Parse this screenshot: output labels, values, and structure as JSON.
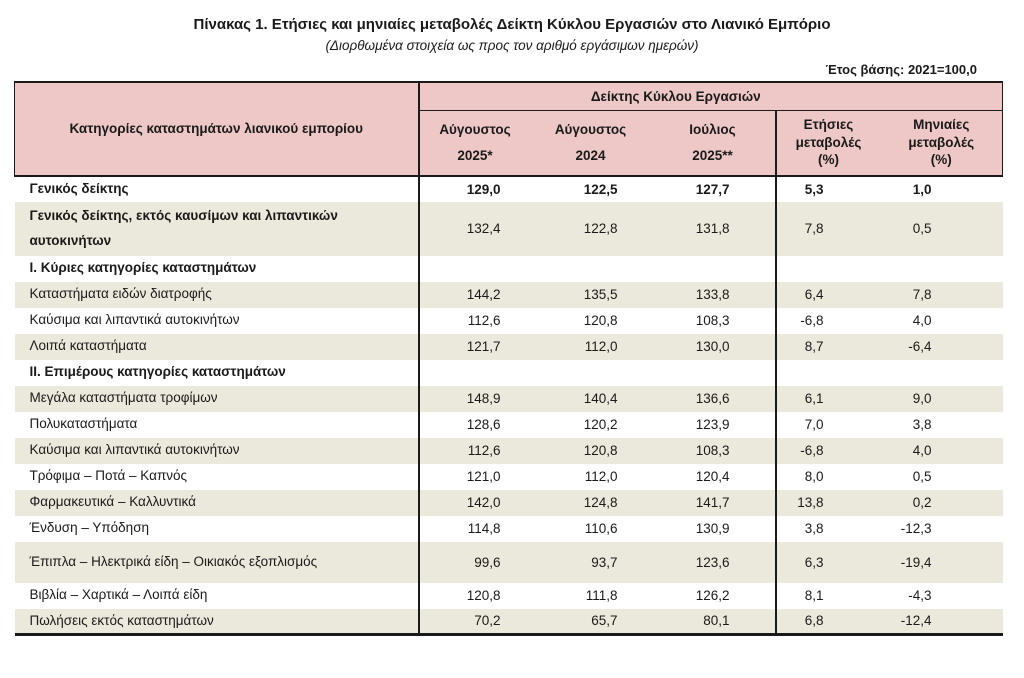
{
  "header": {
    "title": "Πίνακας 1. Ετήσιες και μηνιαίες μεταβολές Δείκτη Κύκλου Εργασιών στο Λιανικό Εμπόριο",
    "subtitle": "(Διορθωμένα στοιχεία ως προς τον αριθμό εργάσιμων ημερών)",
    "base_year_note": "Έτος βάσης: 2021=100,0"
  },
  "table": {
    "group_header": "Δείκτης Κύκλου Εργασιών",
    "category_header": "Κατηγορίες καταστημάτων λιανικού εμπορίου",
    "columns": [
      {
        "key": "august-2025",
        "lines": [
          "Αύγουστος",
          "2025*"
        ]
      },
      {
        "key": "august-2024",
        "lines": [
          "Αύγουστος",
          "2024"
        ]
      },
      {
        "key": "july-2025",
        "lines": [
          "Ιούλιος",
          "2025**"
        ]
      },
      {
        "key": "annual-change-pct",
        "lines": [
          "Ετήσιες",
          "μεταβολές",
          "(%)"
        ]
      },
      {
        "key": "monthly-change-pct",
        "lines": [
          "Μηνιαίες",
          "μεταβολές",
          "(%)"
        ]
      }
    ],
    "rows": [
      {
        "label": "Γενικός δείκτης",
        "values": [
          "129,0",
          "122,5",
          "127,7",
          "5,3",
          "1,0"
        ],
        "emphasis": "all-bold"
      },
      {
        "label": "Γενικός δείκτης, εκτός καυσίμων και λιπαντικών αυτοκινήτων",
        "values": [
          "132,4",
          "122,8",
          "131,8",
          "7,8",
          "0,5"
        ],
        "emphasis": "label-bold",
        "dbl": true
      },
      {
        "label": "Ι. Κύριες κατηγορίες καταστημάτων",
        "values": [
          "",
          "",
          "",
          "",
          ""
        ],
        "emphasis": "section"
      },
      {
        "label": "Καταστήματα ειδών διατροφής",
        "values": [
          "144,2",
          "135,5",
          "133,8",
          "6,4",
          "7,8"
        ],
        "emphasis": "normal"
      },
      {
        "label": "Καύσιμα και λιπαντικά αυτοκινήτων",
        "values": [
          "112,6",
          "120,8",
          "108,3",
          "-6,8",
          "4,0"
        ],
        "emphasis": "normal"
      },
      {
        "label": "Λοιπά καταστήματα",
        "values": [
          "121,7",
          "112,0",
          "130,0",
          "8,7",
          "-6,4"
        ],
        "emphasis": "normal"
      },
      {
        "label": "ΙΙ. Επιμέρους κατηγορίες καταστημάτων",
        "values": [
          "",
          "",
          "",
          "",
          ""
        ],
        "emphasis": "section"
      },
      {
        "label": "Μεγάλα καταστήματα τροφίμων",
        "values": [
          "148,9",
          "140,4",
          "136,6",
          "6,1",
          "9,0"
        ],
        "emphasis": "normal"
      },
      {
        "label": "Πολυκαταστήματα",
        "values": [
          "128,6",
          "120,2",
          "123,9",
          "7,0",
          "3,8"
        ],
        "emphasis": "normal"
      },
      {
        "label": "Καύσιμα και λιπαντικά αυτοκινήτων",
        "values": [
          "112,6",
          "120,8",
          "108,3",
          "-6,8",
          "4,0"
        ],
        "emphasis": "normal"
      },
      {
        "label": "Τρόφιμα – Ποτά – Καπνός",
        "values": [
          "121,0",
          "112,0",
          "120,4",
          "8,0",
          "0,5"
        ],
        "emphasis": "normal"
      },
      {
        "label": "Φαρμακευτικά – Καλλυντικά",
        "values": [
          "142,0",
          "124,8",
          "141,7",
          "13,8",
          "0,2"
        ],
        "emphasis": "normal"
      },
      {
        "label": "Ένδυση – Υπόδηση",
        "values": [
          "114,8",
          "110,6",
          "130,9",
          "3,8",
          "-12,3"
        ],
        "emphasis": "normal"
      },
      {
        "label": "Έπιπλα – Ηλεκτρικά είδη – Οικιακός εξοπλισμός",
        "values": [
          "99,6",
          "93,7",
          "123,6",
          "6,3",
          "-19,4"
        ],
        "emphasis": "normal",
        "tall": true
      },
      {
        "label": "Βιβλία – Χαρτικά – Λοιπά είδη",
        "values": [
          "120,8",
          "111,8",
          "126,2",
          "8,1",
          "-4,3"
        ],
        "emphasis": "normal"
      },
      {
        "label": "Πωλήσεις εκτός καταστημάτων",
        "values": [
          "70,2",
          "65,7",
          "80,1",
          "6,8",
          "-12,4"
        ],
        "emphasis": "normal"
      }
    ],
    "colors": {
      "header_bg": "#eec7c7",
      "stripe_bg": "#ebe8dc",
      "border": "#1a1a1a"
    }
  }
}
